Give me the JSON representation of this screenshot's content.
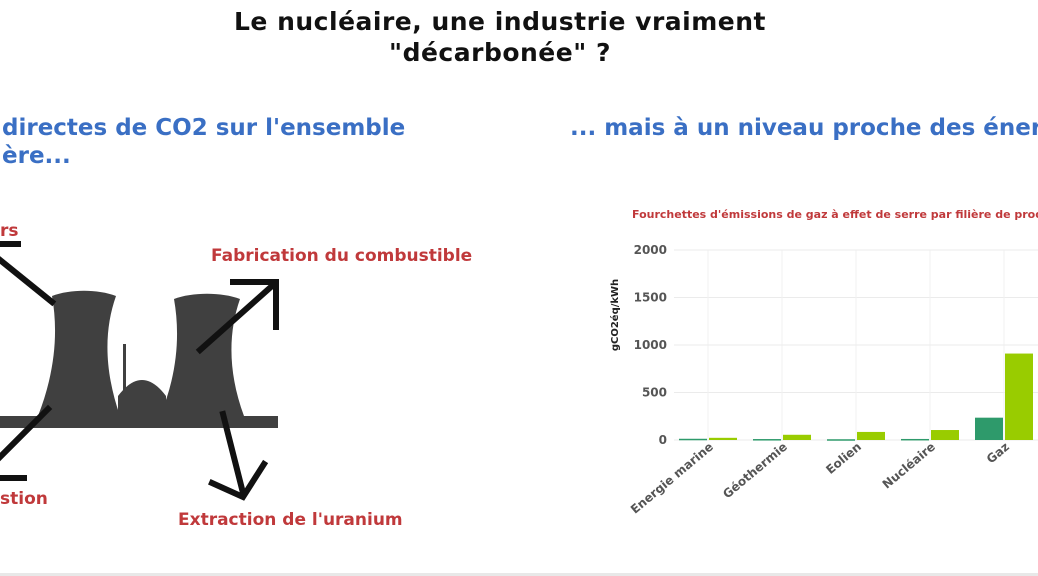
{
  "slide": {
    "title_line1": "Le nucléaire, une industrie vraiment",
    "title_line2": "\"décarbonée\" ?",
    "left_heading_line1": "directes de CO2 sur l'ensemble",
    "left_heading_line2": "ère...",
    "right_heading": "... mais à un niveau proche des énergi"
  },
  "lifecycle_labels": {
    "top_left": "rs",
    "fabrication": "Fabrication du combustible",
    "bottom_left": "stion",
    "extraction": "Extraction de l'uranium"
  },
  "colors": {
    "title": "#111111",
    "heading": "#3a6fc4",
    "label": "#c0393b",
    "plant": "#404040",
    "series_low": "#2e9a6b",
    "series_high": "#99cc00"
  },
  "chart_data": {
    "type": "bar",
    "title": "Fourchettes d'émissions de gaz à effet de serre par filière de production",
    "ylabel": "gCO2éq/kWh",
    "ylim": [
      0,
      2000
    ],
    "yticks": [
      0,
      500,
      1000,
      1500,
      2000
    ],
    "grid": true,
    "categories": [
      "Energie marine",
      "Géothermie",
      "Eolien",
      "Nucléaire",
      "Gaz"
    ],
    "series": [
      {
        "values": [
          13,
          10,
          8,
          11,
          235
        ]
      },
      {
        "values": [
          23,
          55,
          85,
          105,
          910
        ]
      }
    ]
  }
}
